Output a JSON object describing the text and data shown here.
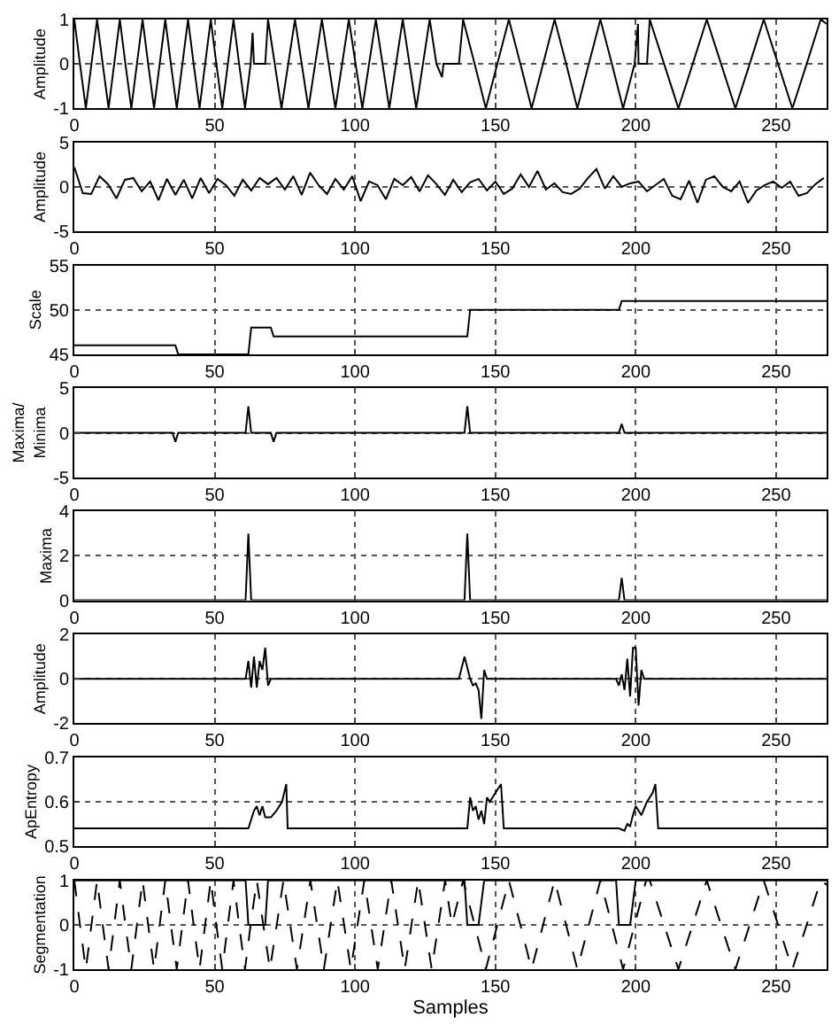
{
  "chart_data": [
    {
      "type": "line",
      "ylabel": "Amplitude",
      "xlim": [
        0,
        268
      ],
      "xticks": [
        0,
        50,
        100,
        150,
        200,
        250
      ],
      "ylim": [
        -1,
        1
      ],
      "yticks": [
        -1,
        0,
        1
      ],
      "grid": true,
      "line_style": "solid",
      "series": [
        {
          "color": "#000000",
          "x": [
            0,
            2.0,
            4.1,
            6.1,
            8.1,
            10.1,
            12.2,
            14.2,
            16.2,
            18.2,
            20.3,
            22.3,
            24.3,
            26.3,
            28.4,
            30.4,
            32.4,
            34.4,
            36.5,
            38.5,
            40.5,
            42.5,
            44.6,
            46.6,
            48.6,
            50.6,
            52.7,
            54.7,
            56.7,
            58.7,
            60.8,
            62.8,
            63.5,
            64,
            68,
            69,
            71.4,
            73.8,
            76.2,
            78.6,
            81,
            83.4,
            85.8,
            88.2,
            90.6,
            93,
            95.4,
            97.8,
            100.2,
            102.6,
            105,
            107.4,
            109.8,
            112.2,
            114.6,
            117,
            119.4,
            121.8,
            124.2,
            126.6,
            129,
            131,
            131.5,
            137,
            138.5,
            142.6,
            146.6,
            150.7,
            154.8,
            158.9,
            162.9,
            167,
            171.1,
            175.2,
            179.2,
            183.3,
            187.4,
            191.5,
            195.5,
            199.6,
            200.8,
            201,
            204,
            205,
            210.1,
            215.2,
            220.3,
            225.3,
            230.4,
            235.5,
            240.6,
            245.6,
            250.7,
            255.8,
            260.9,
            265.9,
            268
          ],
          "values": [
            1,
            0,
            -1,
            0,
            1,
            0,
            -1,
            0,
            1,
            0,
            -1,
            0,
            1,
            0,
            -1,
            0,
            1,
            0,
            -1,
            0,
            1,
            0,
            -1,
            0,
            1,
            0,
            -1,
            0,
            1,
            0,
            -1,
            0,
            0.7,
            0,
            0,
            1,
            0,
            -1,
            0,
            1,
            0,
            -1,
            0,
            1,
            0,
            -1,
            0,
            1,
            0,
            -1,
            0,
            1,
            0,
            -1,
            0,
            1,
            0,
            -1,
            0,
            1,
            0,
            -0.3,
            0,
            0,
            1,
            0,
            -1,
            0,
            1,
            0,
            -1,
            0,
            1,
            0,
            -1,
            0,
            1,
            0,
            -1,
            0,
            0.9,
            0,
            0,
            1,
            0,
            -1,
            0,
            1,
            0,
            -1,
            0,
            1,
            0,
            -1,
            0,
            1,
            0.9
          ]
        }
      ]
    },
    {
      "type": "line",
      "ylabel": "Amplitude",
      "xlim": [
        0,
        268
      ],
      "xticks": [
        0,
        50,
        100,
        150,
        200,
        250
      ],
      "ylim": [
        -5,
        5
      ],
      "yticks": [
        -5,
        0,
        5
      ],
      "grid": true,
      "line_style": "solid",
      "series": [
        {
          "color": "#000000",
          "x": [
            0,
            3,
            6,
            9,
            12,
            15,
            18,
            21,
            24,
            27,
            30,
            33,
            36,
            39,
            42,
            45,
            48,
            51,
            54,
            57,
            60,
            63,
            66,
            69,
            72,
            75,
            78,
            81,
            84,
            87,
            90,
            93,
            96,
            99,
            102,
            105,
            108,
            111,
            114,
            117,
            120,
            123,
            126,
            129,
            132,
            135,
            138,
            141,
            144,
            147,
            150,
            153,
            156,
            159,
            162,
            165,
            168,
            171,
            174,
            177,
            180,
            183,
            186,
            189,
            192,
            195,
            198,
            201,
            204,
            207,
            210,
            213,
            216,
            219,
            222,
            225,
            228,
            231,
            234,
            237,
            240,
            243,
            246,
            249,
            252,
            255,
            258,
            261,
            264,
            267
          ],
          "values": [
            2.2,
            -0.7,
            -0.8,
            1.2,
            0.3,
            -1.3,
            0.8,
            1.0,
            -0.5,
            0.6,
            -1.5,
            0.9,
            -0.9,
            0.8,
            -1.3,
            1.0,
            -0.7,
            0.9,
            0.2,
            -1.0,
            0.8,
            -0.4,
            1.0,
            0.3,
            1.0,
            -0.3,
            1.2,
            -0.9,
            1.6,
            0.2,
            -0.8,
            0.9,
            -0.3,
            1.2,
            -1.6,
            0.6,
            0.2,
            -1.4,
            0.9,
            0.2,
            1.1,
            -0.5,
            1.3,
            0.3,
            -0.9,
            0.8,
            -0.6,
            0.5,
            0.9,
            -0.4,
            0.6,
            -0.8,
            -0.2,
            1.4,
            0.0,
            1.8,
            -0.3,
            0.4,
            -0.6,
            -0.8,
            -0.2,
            1.0,
            2.0,
            -0.2,
            1.2,
            0.0,
            0.4,
            0.6,
            -0.5,
            0.2,
            0.9,
            -1.0,
            -1.4,
            0.7,
            -1.8,
            0.8,
            1.2,
            0.0,
            -0.5,
            0.6,
            -1.8,
            -0.4,
            0.2,
            0.6,
            -0.1,
            0.6,
            -1.0,
            -0.7,
            0.3,
            1.0
          ]
        }
      ]
    },
    {
      "type": "line",
      "ylabel": "Scale",
      "xlim": [
        0,
        268
      ],
      "xticks": [
        0,
        50,
        100,
        150,
        200,
        250
      ],
      "ylim": [
        45,
        55
      ],
      "yticks": [
        45,
        50,
        55
      ],
      "grid": true,
      "line_style": "solid",
      "series": [
        {
          "color": "#000000",
          "x": [
            0,
            36,
            37,
            62,
            63,
            70,
            71,
            140,
            141,
            194,
            195,
            268
          ],
          "values": [
            46,
            46,
            45,
            45,
            48,
            48,
            47,
            47,
            50,
            50,
            51,
            51
          ]
        }
      ]
    },
    {
      "type": "line",
      "ylabel": "Maxima/Minima",
      "xlim": [
        0,
        268
      ],
      "xticks": [
        0,
        50,
        100,
        150,
        200,
        250
      ],
      "ylim": [
        -5,
        5
      ],
      "yticks": [
        -5,
        0,
        5
      ],
      "grid": true,
      "line_style": "solid",
      "series": [
        {
          "color": "#000000",
          "x": [
            0,
            35,
            36,
            37,
            61,
            62,
            63,
            70,
            71,
            72,
            139,
            140,
            141,
            194,
            195,
            196,
            268
          ],
          "values": [
            0,
            0,
            -1,
            0,
            0,
            3,
            0,
            0,
            -1,
            0,
            0,
            3,
            0,
            0,
            1,
            0,
            0
          ]
        }
      ]
    },
    {
      "type": "line",
      "ylabel": "Maxima",
      "xlim": [
        0,
        268
      ],
      "xticks": [
        0,
        50,
        100,
        150,
        200,
        250
      ],
      "ylim": [
        0,
        4
      ],
      "yticks": [
        0,
        2,
        4
      ],
      "grid": true,
      "line_style": "solid",
      "series": [
        {
          "color": "#000000",
          "x": [
            0,
            61,
            62,
            63,
            139,
            140,
            141,
            194,
            195,
            196,
            268
          ],
          "values": [
            0,
            0,
            3,
            0,
            0,
            3,
            0,
            0,
            1,
            0,
            0
          ]
        }
      ]
    },
    {
      "type": "line",
      "ylabel": "Amplitude",
      "xlim": [
        0,
        268
      ],
      "xticks": [
        0,
        50,
        100,
        150,
        200,
        250
      ],
      "ylim": [
        -2,
        2
      ],
      "yticks": [
        -2,
        0,
        2
      ],
      "grid": true,
      "line_style": "solid",
      "series": [
        {
          "color": "#000000",
          "x": [
            0,
            61,
            62,
            63,
            64,
            65,
            66,
            67,
            68,
            69,
            70,
            137,
            139,
            141,
            142,
            143,
            144,
            145,
            146,
            147,
            193,
            194,
            195,
            196,
            197,
            198,
            199,
            200,
            201,
            202,
            203,
            268
          ],
          "values": [
            0,
            0,
            0.8,
            -0.4,
            1.0,
            -0.4,
            0.8,
            0.4,
            1.4,
            -0.3,
            0,
            0,
            1.0,
            0,
            -0.3,
            -0.2,
            -0.5,
            -1.8,
            0.4,
            0,
            0,
            -0.3,
            0.2,
            -0.5,
            0.9,
            -0.8,
            1.4,
            1.4,
            -1.2,
            0.4,
            0,
            0
          ]
        }
      ]
    },
    {
      "type": "line",
      "ylabel": "ApEntropy",
      "xlim": [
        0,
        268
      ],
      "xticks": [
        0,
        50,
        100,
        150,
        200,
        250
      ],
      "ylim": [
        0.5,
        0.7
      ],
      "yticks": [
        0.5,
        0.6,
        0.7
      ],
      "grid": true,
      "line_style": "solid",
      "series": [
        {
          "color": "#000000",
          "x": [
            0,
            62,
            64,
            65,
            66,
            67,
            68,
            70,
            72,
            74,
            75.5,
            76,
            140,
            141,
            142,
            143,
            144,
            145,
            146,
            147,
            148,
            150,
            152,
            153,
            194,
            196,
            197,
            198,
            199,
            200,
            201,
            202,
            204,
            206,
            207,
            208,
            268
          ],
          "values": [
            0.54,
            0.54,
            0.58,
            0.59,
            0.57,
            0.59,
            0.565,
            0.565,
            0.58,
            0.6,
            0.64,
            0.54,
            0.54,
            0.61,
            0.58,
            0.59,
            0.56,
            0.58,
            0.55,
            0.61,
            0.6,
            0.62,
            0.64,
            0.54,
            0.54,
            0.535,
            0.55,
            0.545,
            0.57,
            0.59,
            0.58,
            0.57,
            0.6,
            0.62,
            0.64,
            0.54,
            0.54
          ]
        }
      ]
    },
    {
      "type": "line",
      "ylabel": "Segmentation",
      "xlabel": "Samples",
      "xlim": [
        0,
        268
      ],
      "xticks": [
        0,
        50,
        100,
        150,
        200,
        250
      ],
      "ylim": [
        -1,
        1
      ],
      "yticks": [
        -1,
        0,
        1
      ],
      "grid": true,
      "series": [
        {
          "color": "#000000",
          "line_style": "solid",
          "x": [
            0,
            61,
            62,
            68,
            69,
            139,
            140,
            144,
            146,
            193,
            194,
            198,
            200,
            268
          ],
          "values": [
            1,
            1,
            0,
            0,
            1,
            1,
            0,
            0,
            1,
            1,
            0,
            0,
            1,
            1
          ]
        },
        {
          "color": "#000000",
          "line_style": "dashed",
          "x": [
            0,
            2.0,
            4.1,
            6.1,
            8.1,
            10.1,
            12.2,
            14.2,
            16.2,
            18.2,
            20.3,
            22.3,
            24.3,
            26.3,
            28.4,
            30.4,
            32.4,
            34.4,
            36.5,
            38.5,
            40.5,
            42.5,
            44.6,
            46.6,
            48.6,
            50.6,
            52.7,
            54.7,
            56.7,
            58.7,
            60.8,
            62.8,
            65,
            67.3,
            69.7,
            72.1,
            74.5,
            76.9,
            79.3,
            81.7,
            84.1,
            86.5,
            88.9,
            91.3,
            93.7,
            96.1,
            98.5,
            100.9,
            103.3,
            105.7,
            108.1,
            110.5,
            112.9,
            115.3,
            117.7,
            120.1,
            122.5,
            124.9,
            127.3,
            129.7,
            132.1,
            134.5,
            138.5,
            142.6,
            146.6,
            150.7,
            154.8,
            158.9,
            162.9,
            167,
            171.1,
            175.2,
            179.2,
            183.3,
            187.4,
            191.5,
            195.5,
            199.6,
            203.7,
            205,
            210.1,
            215.2,
            220.3,
            225.3,
            230.4,
            235.5,
            240.6,
            245.6,
            250.7,
            255.8,
            260.9,
            265.9,
            268
          ],
          "values": [
            1,
            0,
            -1,
            0,
            1,
            0,
            -1,
            0,
            1,
            0,
            -1,
            0,
            1,
            0,
            -1,
            0,
            1,
            0,
            -1,
            0,
            1,
            0,
            -1,
            0,
            1,
            0,
            -1,
            0,
            1,
            0,
            -1,
            0,
            1,
            0,
            -1,
            0,
            1,
            0,
            -1,
            0,
            1,
            0,
            -1,
            0,
            1,
            0,
            -1,
            0,
            1,
            0,
            -1,
            0,
            1,
            0,
            -1,
            0,
            1,
            0,
            -1,
            0,
            1,
            0,
            1,
            0,
            -1,
            0,
            1,
            0,
            -1,
            0,
            1,
            0,
            -1,
            0,
            1,
            0,
            -1,
            0,
            1,
            1,
            0,
            -1,
            0,
            1,
            0,
            -1,
            0,
            1,
            0,
            -1,
            0,
            1,
            0.9
          ]
        }
      ]
    }
  ]
}
